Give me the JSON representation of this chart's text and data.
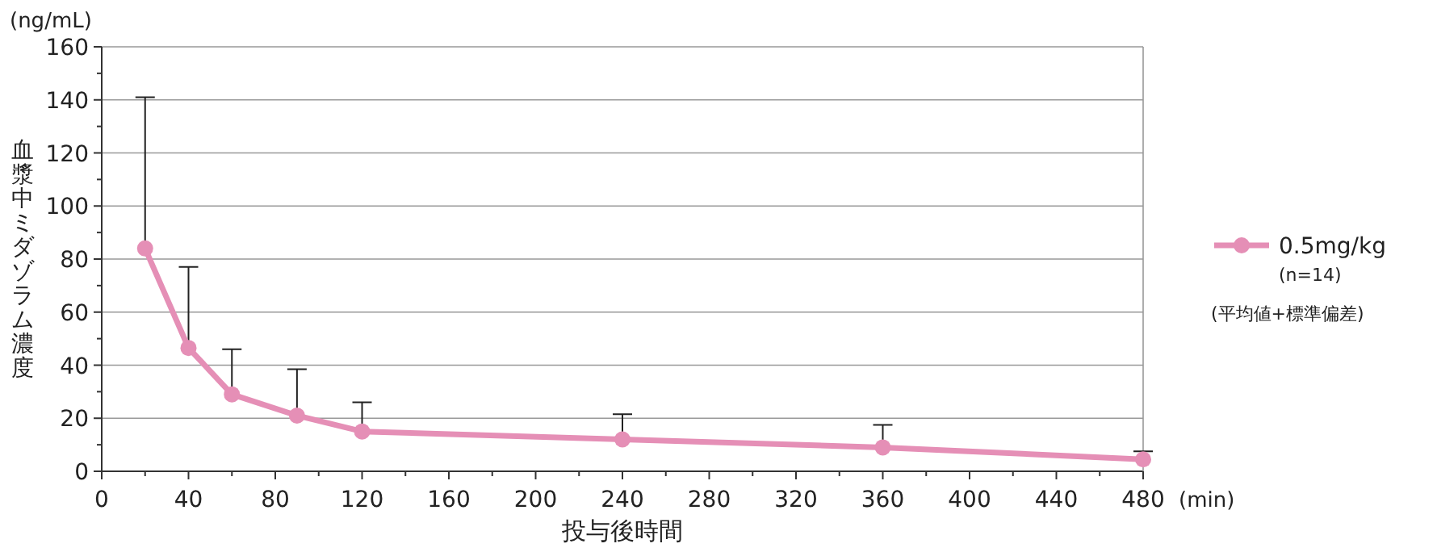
{
  "chart_data": {
    "type": "line",
    "xlabel": "投与後時間",
    "ylabel": "血漿中ミダゾラム濃度",
    "x": [
      20,
      40,
      60,
      90,
      120,
      240,
      360,
      480
    ],
    "series": [
      {
        "name": "0.5mg/kg",
        "color": "#e58fb6",
        "values": [
          84,
          46.5,
          29,
          21,
          15,
          12,
          9,
          4.5
        ],
        "errors": [
          [
            84,
            141
          ],
          [
            46.5,
            77
          ],
          [
            29,
            46
          ],
          [
            21,
            38.5
          ],
          [
            15,
            26
          ],
          [
            12,
            21.5
          ],
          [
            9,
            17.5
          ],
          [
            4.5,
            7.5
          ]
        ]
      }
    ],
    "xlim": [
      0,
      480
    ],
    "xticks": [
      0,
      40,
      80,
      120,
      160,
      200,
      240,
      280,
      320,
      360,
      400,
      440,
      480
    ],
    "ylim": [
      0,
      160
    ],
    "yticks": [
      0,
      20,
      40,
      60,
      80,
      100,
      120,
      140,
      160
    ],
    "grid": "y",
    "legend": "right",
    "marker": "circle",
    "line_style": "solid",
    "annotations": [
      "(ng/mL)",
      "(min)",
      "(n=14)",
      "(平均値+標準偏差)"
    ]
  }
}
